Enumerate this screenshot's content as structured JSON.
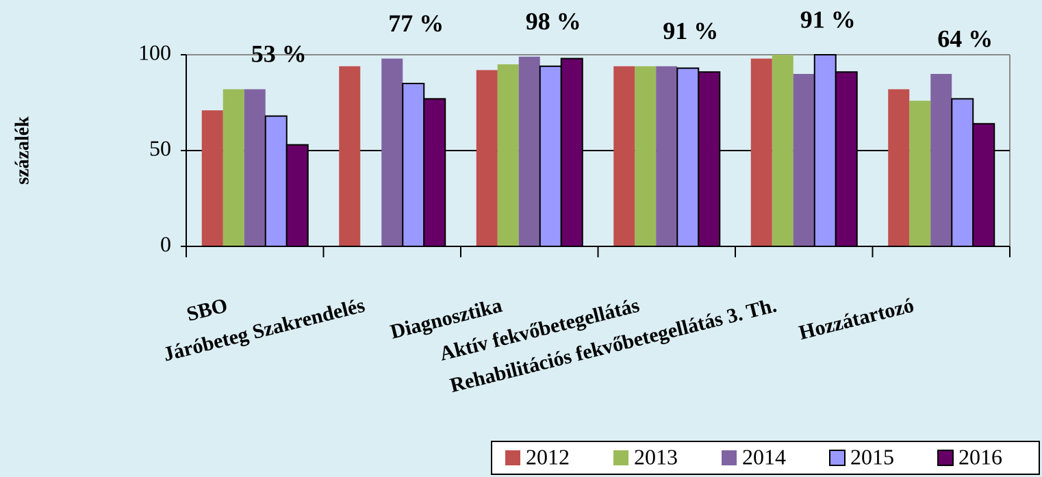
{
  "chart_data": {
    "type": "bar",
    "ylabel": "százalék",
    "categories": [
      "SBO",
      "Járóbeteg Szakrendelés",
      "Diagnosztika",
      "Aktív fekvőbetegellátás",
      "Rehabilitációs fekvőbetegellátás 3. Th.",
      "Hozzátartozó"
    ],
    "series": [
      {
        "name": "2012",
        "color": "#c0504d",
        "values": [
          71,
          94,
          92,
          94,
          98,
          82
        ]
      },
      {
        "name": "2013",
        "color": "#9bbb59",
        "values": [
          82,
          null,
          95,
          94,
          100,
          76
        ]
      },
      {
        "name": "2014",
        "color": "#8064a2",
        "values": [
          82,
          98,
          99,
          94,
          90,
          90
        ]
      },
      {
        "name": "2015",
        "color": "#9999ff",
        "edgecolor": "#000000",
        "values": [
          68,
          85,
          94,
          93,
          100,
          77
        ]
      },
      {
        "name": "2016",
        "color": "#660066",
        "edgecolor": "#000000",
        "values": [
          53,
          77,
          98,
          91,
          91,
          64
        ],
        "value_labels": [
          "53 %",
          "77 %",
          "98 %",
          "91 %",
          "91 %",
          "64 %"
        ]
      }
    ],
    "ylim": [
      0,
      100
    ],
    "yticks": [
      0,
      50,
      100
    ],
    "grid": true,
    "legend": "lower right"
  }
}
